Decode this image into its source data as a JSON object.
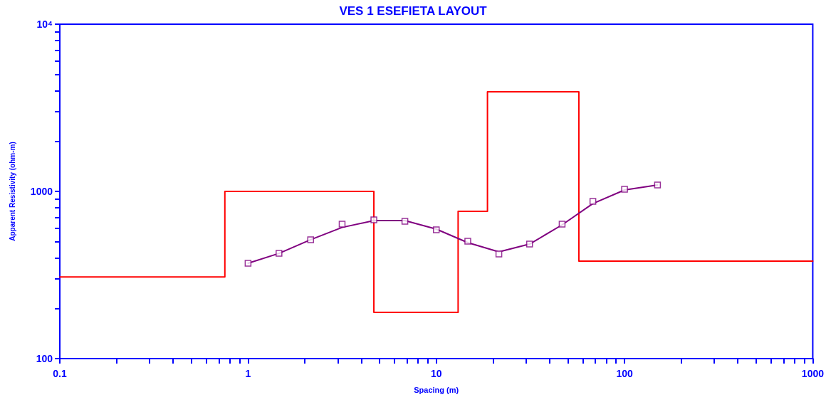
{
  "chart_data": {
    "type": "line",
    "title": "VES 1 ESEFIETA LAYOUT",
    "xlabel": "Spacing (m)",
    "ylabel": "Apparent Resistivity (ohm-m)",
    "log": "xy",
    "grid": false,
    "xlim": [
      0.1,
      1000
    ],
    "ylim": [
      100,
      10000
    ],
    "xticks": [
      0.1,
      {
        "value": 0.2,
        "label": null
      },
      {
        "value": 0.3,
        "label": null
      },
      {
        "value": 0.4,
        "label": null
      },
      {
        "value": 0.5,
        "label": null
      },
      {
        "value": 0.6,
        "label": null
      },
      {
        "value": 0.7,
        "label": null
      },
      {
        "value": 0.8,
        "label": null
      },
      {
        "value": 0.9,
        "label": null
      },
      1,
      {
        "value": 2,
        "label": null
      },
      {
        "value": 3,
        "label": null
      },
      {
        "value": 4,
        "label": null
      },
      {
        "value": 5,
        "label": null
      },
      {
        "value": 6,
        "label": null
      },
      {
        "value": 7,
        "label": null
      },
      {
        "value": 8,
        "label": null
      },
      {
        "value": 9,
        "label": null
      },
      10,
      {
        "value": 20,
        "label": null
      },
      {
        "value": 30,
        "label": null
      },
      {
        "value": 40,
        "label": null
      },
      {
        "value": 50,
        "label": null
      },
      {
        "value": 60,
        "label": null
      },
      {
        "value": 70,
        "label": null
      },
      {
        "value": 80,
        "label": null
      },
      {
        "value": 90,
        "label": null
      },
      100,
      {
        "value": 200,
        "label": null
      },
      {
        "value": 300,
        "label": null
      },
      {
        "value": 400,
        "label": null
      },
      {
        "value": 500,
        "label": null
      },
      {
        "value": 600,
        "label": null
      },
      {
        "value": 700,
        "label": null
      },
      {
        "value": 800,
        "label": null
      },
      {
        "value": 900,
        "label": null
      },
      1000
    ],
    "yticks": [
      100,
      {
        "value": 200,
        "label": null
      },
      {
        "value": 300,
        "label": null
      },
      {
        "value": 400,
        "label": null
      },
      {
        "value": 500,
        "label": null
      },
      {
        "value": 600,
        "label": null
      },
      {
        "value": 700,
        "label": null
      },
      {
        "value": 800,
        "label": null
      },
      {
        "value": 900,
        "label": null
      },
      1000,
      {
        "value": 2000,
        "label": null
      },
      {
        "value": 3000,
        "label": null
      },
      {
        "value": 4000,
        "label": null
      },
      {
        "value": 5000,
        "label": null
      },
      {
        "value": 6000,
        "label": null
      },
      {
        "value": 7000,
        "label": null
      },
      {
        "value": 8000,
        "label": null
      },
      {
        "value": 9000,
        "label": null
      },
      {
        "value": 10000,
        "label": "10⁴"
      }
    ],
    "series": [
      {
        "type": "step",
        "color": "#ff0000",
        "marker": "none",
        "x": [
          0.1,
          0.753,
          4.66,
          13.06,
          18.7,
          57.2,
          1000
        ],
        "values": [
          308,
          1000,
          189,
          760,
          3940,
          383,
          383
        ]
      },
      {
        "type": "scatter",
        "color": "#800080",
        "marker": "square",
        "x": [
          1,
          1.46,
          2.15,
          3.16,
          4.66,
          6.81,
          10,
          14.7,
          21.5,
          31.3,
          46.6,
          67.9,
          100,
          149.7
        ],
        "values": [
          372,
          426,
          514,
          637,
          676,
          663,
          589,
          504,
          422,
          484,
          637,
          871,
          1030,
          1092
        ]
      },
      {
        "color": "#800080",
        "marker": "none",
        "x": [
          1,
          1.46,
          2.15,
          3.16,
          4.66,
          6.81,
          10,
          14.7,
          21.5,
          31.3,
          46.6,
          67.9,
          100,
          149.7
        ],
        "values": [
          372,
          426,
          514,
          609,
          669,
          669,
          595,
          494,
          435,
          484,
          631,
          846,
          1020,
          1092
        ]
      }
    ]
  }
}
